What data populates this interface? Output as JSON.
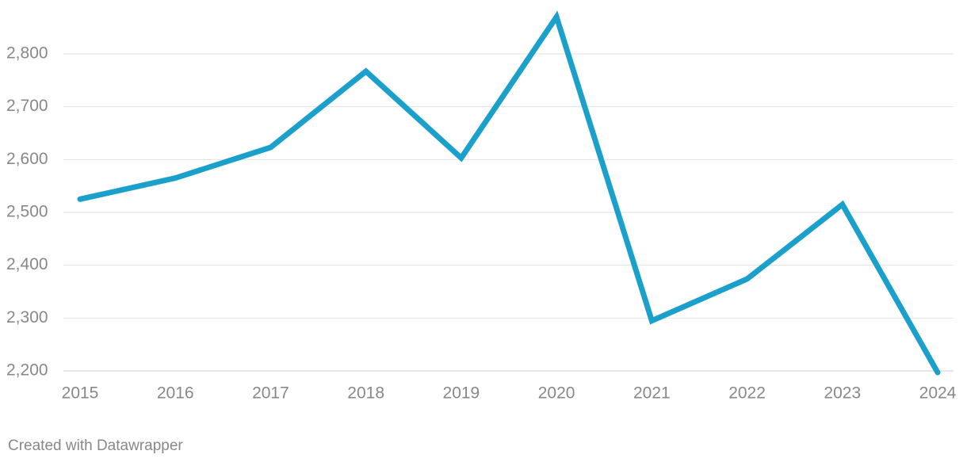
{
  "chart_data": {
    "type": "line",
    "categories": [
      "2015",
      "2016",
      "2017",
      "2018",
      "2019",
      "2020",
      "2021",
      "2022",
      "2023",
      "2024"
    ],
    "series": [
      {
        "name": "Value",
        "color": "#1ba0cc",
        "values": [
          2525,
          2565,
          2623,
          2767,
          2603,
          2870,
          2295,
          2374,
          2515,
          2197
        ]
      }
    ],
    "ylim": [
      2200,
      2800
    ],
    "yticks": [
      {
        "value": 2200,
        "label": "2,200"
      },
      {
        "value": 2300,
        "label": "2,300"
      },
      {
        "value": 2400,
        "label": "2,400"
      },
      {
        "value": 2500,
        "label": "2,500"
      },
      {
        "value": 2600,
        "label": "2,600"
      },
      {
        "value": 2700,
        "label": "2,700"
      },
      {
        "value": 2800,
        "label": "2,800"
      }
    ],
    "grid": true,
    "footer": "Created with Datawrapper"
  }
}
